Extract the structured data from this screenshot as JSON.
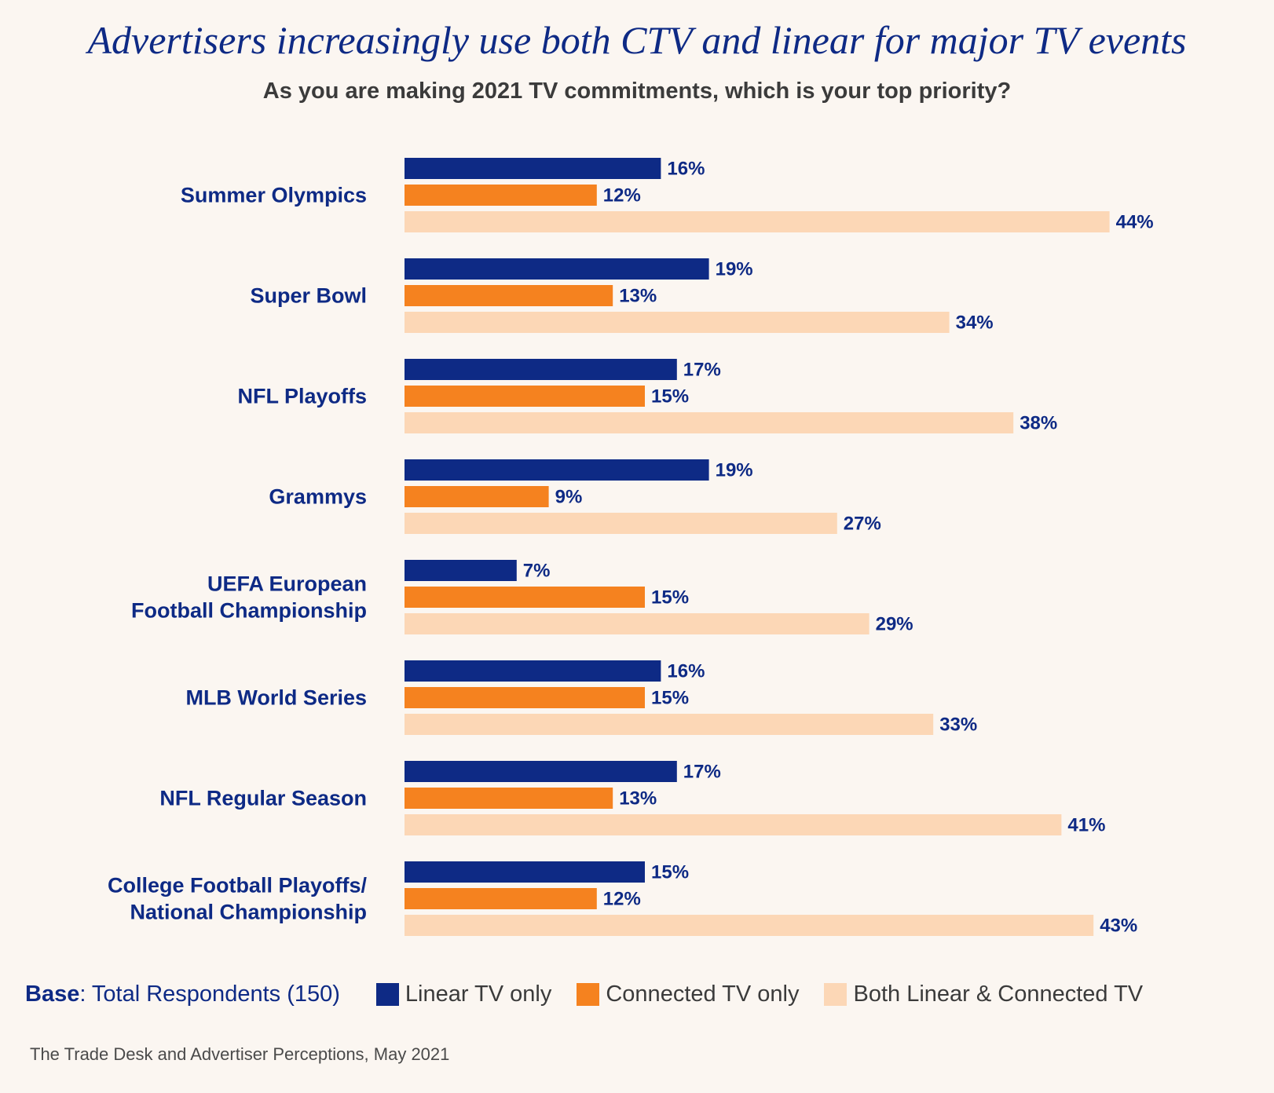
{
  "header": {
    "title": "Advertisers increasingly use both CTV and linear for major TV events",
    "subtitle": "As you are making 2021 TV commitments, which is your top priority?"
  },
  "chart_data": {
    "type": "bar",
    "orientation": "horizontal",
    "categories": [
      [
        "Summer Olympics"
      ],
      [
        "Super Bowl"
      ],
      [
        "NFL Playoffs"
      ],
      [
        "Grammys"
      ],
      [
        "UEFA European",
        "Football Championship"
      ],
      [
        "MLB World Series"
      ],
      [
        "NFL Regular Season"
      ],
      [
        "College Football Playoffs/",
        "National Championship"
      ]
    ],
    "series": [
      {
        "name": "Linear TV only",
        "color": "#0e2a85",
        "values": [
          16,
          19,
          17,
          19,
          7,
          16,
          17,
          15
        ]
      },
      {
        "name": "Connected TV only",
        "color": "#f5821f",
        "values": [
          12,
          13,
          15,
          9,
          15,
          15,
          13,
          12
        ]
      },
      {
        "name": "Both Linear & Connected TV",
        "color": "#fcd7b6",
        "values": [
          44,
          34,
          38,
          27,
          29,
          33,
          41,
          43
        ]
      }
    ],
    "value_suffix": "%",
    "grid": false,
    "legend_position": "bottom"
  },
  "footer": {
    "base_bold": "Base",
    "base_text": ": Total Respondents (150)",
    "source": "The Trade Desk and Advertiser Perceptions, May 2021"
  }
}
